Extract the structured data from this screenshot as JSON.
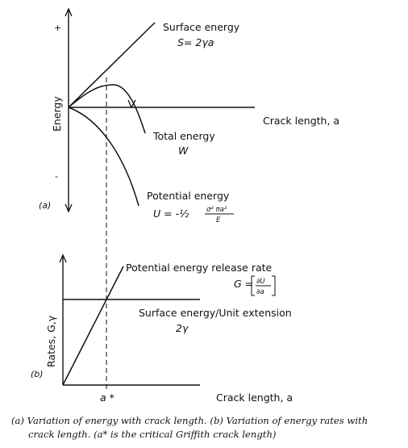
{
  "top_chart": {
    "panel_label": "(a)",
    "y_axis_label": "Energy",
    "plus_mark": "+",
    "minus_mark": "-",
    "x_axis_label": "Crack length, a",
    "surface_energy": {
      "title": "Surface energy",
      "formula": "S= 2γa"
    },
    "total_energy": {
      "title": "Total energy",
      "symbol": "W"
    },
    "potential_energy": {
      "title": "Potential energy",
      "lhs": "U = -½",
      "numerator": "σ² πa²",
      "denominator": "E"
    }
  },
  "bottom_chart": {
    "panel_label": "(b)",
    "y_axis_label": "Rates, G,γ",
    "x_axis_label": "Crack length, a",
    "critical_label": "a *",
    "release_rate": {
      "title": "Potential energy release rate",
      "lhs": "G =",
      "numerator": "∂U",
      "denominator": "∂a"
    },
    "surface_rate": {
      "title": "Surface energy/Unit extension",
      "symbol": "2γ"
    }
  },
  "caption": {
    "line1": "(a) Variation of energy with crack length.  (b) Variation of energy rates with",
    "line2": "crack length. (a* is the critical Griffith crack length)"
  }
}
